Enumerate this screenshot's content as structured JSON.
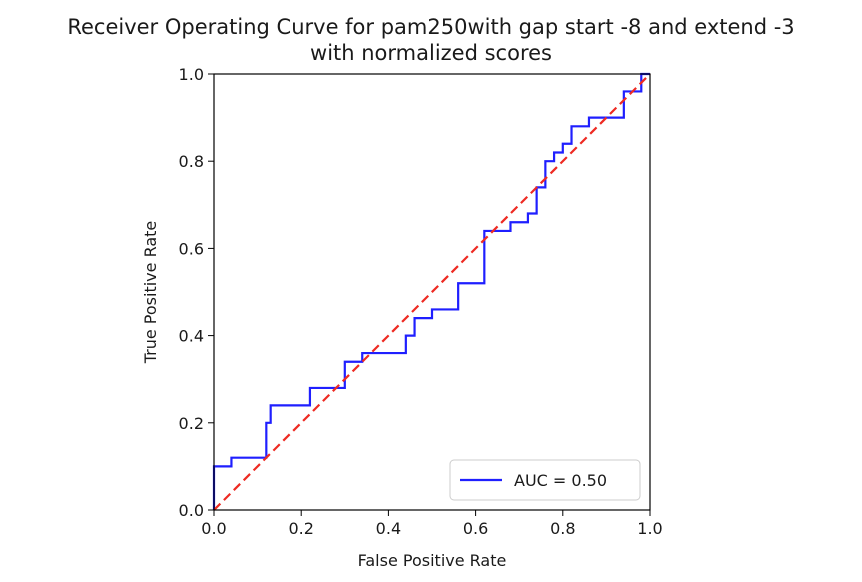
{
  "chart_data": {
    "type": "line",
    "title": "Receiver Operating Curve for pam250with gap start -8 and extend -3",
    "subtitle": "with normalized scores",
    "xlabel": "False Positive Rate",
    "ylabel": "True Positive Rate",
    "xlim": [
      0.0,
      1.0
    ],
    "ylim": [
      0.0,
      1.0
    ],
    "xticks": [
      "0.0",
      "0.2",
      "0.4",
      "0.6",
      "0.8",
      "1.0"
    ],
    "yticks": [
      "0.0",
      "0.2",
      "0.4",
      "0.6",
      "0.8",
      "1.0"
    ],
    "grid": false,
    "legend_position": "lower-right",
    "series": [
      {
        "name": "AUC = 0.50",
        "color": "#1f1fff",
        "style": "solid",
        "points": [
          [
            0.0,
            0.0
          ],
          [
            0.0,
            0.1
          ],
          [
            0.04,
            0.1
          ],
          [
            0.04,
            0.12
          ],
          [
            0.12,
            0.12
          ],
          [
            0.12,
            0.2
          ],
          [
            0.13,
            0.2
          ],
          [
            0.13,
            0.24
          ],
          [
            0.22,
            0.24
          ],
          [
            0.22,
            0.28
          ],
          [
            0.3,
            0.28
          ],
          [
            0.3,
            0.34
          ],
          [
            0.34,
            0.34
          ],
          [
            0.34,
            0.36
          ],
          [
            0.44,
            0.36
          ],
          [
            0.44,
            0.4
          ],
          [
            0.46,
            0.4
          ],
          [
            0.46,
            0.44
          ],
          [
            0.5,
            0.44
          ],
          [
            0.5,
            0.46
          ],
          [
            0.56,
            0.46
          ],
          [
            0.56,
            0.52
          ],
          [
            0.62,
            0.52
          ],
          [
            0.62,
            0.64
          ],
          [
            0.68,
            0.64
          ],
          [
            0.68,
            0.66
          ],
          [
            0.72,
            0.66
          ],
          [
            0.72,
            0.68
          ],
          [
            0.74,
            0.68
          ],
          [
            0.74,
            0.74
          ],
          [
            0.76,
            0.74
          ],
          [
            0.76,
            0.8
          ],
          [
            0.78,
            0.8
          ],
          [
            0.78,
            0.82
          ],
          [
            0.8,
            0.82
          ],
          [
            0.8,
            0.84
          ],
          [
            0.82,
            0.84
          ],
          [
            0.82,
            0.88
          ],
          [
            0.86,
            0.88
          ],
          [
            0.86,
            0.9
          ],
          [
            0.94,
            0.9
          ],
          [
            0.94,
            0.96
          ],
          [
            0.98,
            0.96
          ],
          [
            0.98,
            1.0
          ],
          [
            1.0,
            1.0
          ]
        ]
      },
      {
        "name": "",
        "color": "#ee2a22",
        "style": "dashed",
        "points": [
          [
            0.0,
            0.0
          ],
          [
            1.0,
            1.0
          ]
        ]
      }
    ]
  }
}
